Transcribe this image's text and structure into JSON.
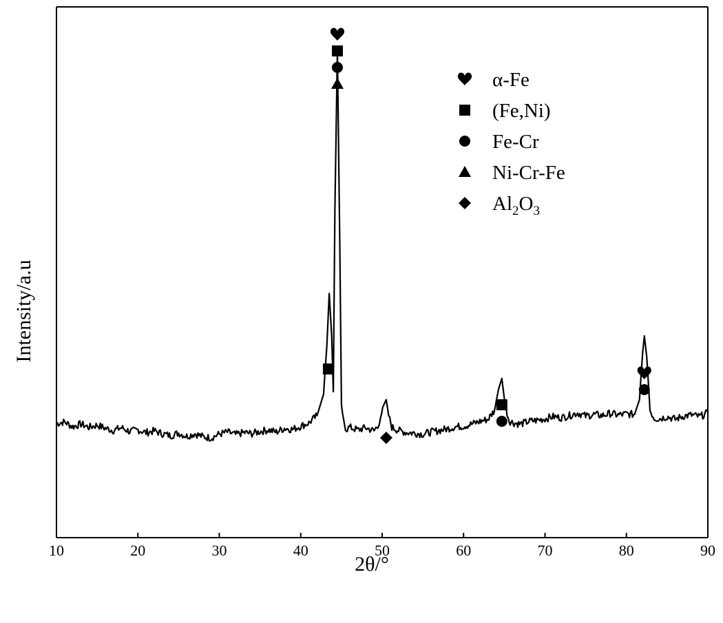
{
  "chart_data": {
    "type": "line",
    "xlabel": "2θ/°",
    "ylabel": "Intensity/a.u",
    "xlim": [
      10,
      90
    ],
    "ylim": [
      0,
      100
    ],
    "xticks": [
      "10",
      "20",
      "30",
      "40",
      "50",
      "60",
      "70",
      "80",
      "90"
    ],
    "yticks_shown": false,
    "grid": false,
    "legend_position": "top-right",
    "series": [
      {
        "name": "",
        "color": "#000000",
        "x": [
          10,
          11,
          12,
          13,
          14,
          15,
          16,
          17,
          18,
          19,
          20,
          21,
          22,
          23,
          24,
          25,
          26,
          27,
          28,
          29,
          30,
          31,
          32,
          33,
          34,
          35,
          36,
          37,
          38,
          39,
          40,
          41,
          42,
          42.8,
          43.2,
          43.5,
          43.8,
          44.0,
          44.2,
          44.5,
          44.8,
          45.0,
          45.3,
          45.6,
          46,
          47,
          48,
          49,
          49.8,
          50.2,
          50.5,
          50.8,
          51.2,
          52,
          53,
          54,
          55,
          56,
          57,
          58,
          59,
          60,
          61,
          62,
          63,
          63.8,
          64.3,
          64.7,
          65.1,
          65.6,
          66.2,
          67,
          68,
          69,
          70,
          71,
          72,
          73,
          74,
          75,
          76,
          77,
          78,
          79,
          80,
          81,
          81.6,
          82.0,
          82.2,
          82.5,
          82.9,
          83.4,
          84,
          85,
          86,
          87,
          88,
          89,
          90
        ],
        "y": [
          21.5,
          21.8,
          20.9,
          21.4,
          20.8,
          21.2,
          20.6,
          20.2,
          20.7,
          20.0,
          20.3,
          19.8,
          20.1,
          19.6,
          19.2,
          19.7,
          19.1,
          19.6,
          19.0,
          18.8,
          19.5,
          19.9,
          19.4,
          19.8,
          19.6,
          20.0,
          20.3,
          19.9,
          20.6,
          20.4,
          21.0,
          21.6,
          23.0,
          27.0,
          36.0,
          46.0,
          38.0,
          27.5,
          62.0,
          92.0,
          55.0,
          25.0,
          21.6,
          20.4,
          20.8,
          20.3,
          20.7,
          20.1,
          22.0,
          25.0,
          26.0,
          23.0,
          20.8,
          20.2,
          19.8,
          19.7,
          19.5,
          19.9,
          20.2,
          20.5,
          20.9,
          21.0,
          21.4,
          21.9,
          22.3,
          24.0,
          28.0,
          30.0,
          25.0,
          22.0,
          21.6,
          21.4,
          21.9,
          22.1,
          22.4,
          22.8,
          22.6,
          23.0,
          23.5,
          22.9,
          23.2,
          23.0,
          23.4,
          23.1,
          23.3,
          23.2,
          26.0,
          35.0,
          38.0,
          34.0,
          24.0,
          22.5,
          22.4,
          22.8,
          22.3,
          22.9,
          23.1,
          22.8,
          23.5
        ]
      }
    ],
    "legend": [
      {
        "symbol": "heart",
        "label": "α-Fe"
      },
      {
        "symbol": "square",
        "label": "(Fe,Ni)"
      },
      {
        "symbol": "circle",
        "label": "Fe-Cr"
      },
      {
        "symbol": "triangle",
        "label": "Ni-Cr-Fe"
      },
      {
        "symbol": "diamond",
        "label": "Al",
        "sub1": "2",
        "mid": "O",
        "sub2": "3"
      }
    ],
    "peak_markers": [
      {
        "x": 43.4,
        "symbols": [
          "square"
        ]
      },
      {
        "x": 44.5,
        "symbols": [
          "triangle",
          "circle",
          "square",
          "heart"
        ]
      },
      {
        "x": 50.5,
        "symbols": [
          "diamond"
        ]
      },
      {
        "x": 64.7,
        "symbols": [
          "circle",
          "square"
        ]
      },
      {
        "x": 82.2,
        "symbols": [
          "circle",
          "heart"
        ]
      }
    ]
  }
}
